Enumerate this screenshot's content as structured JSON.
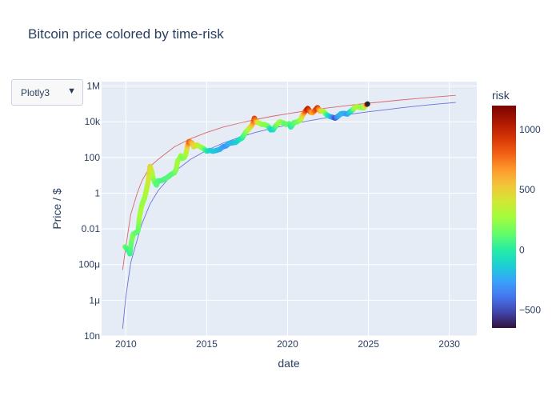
{
  "title": "Bitcoin price colored by time-risk",
  "dropdown": {
    "selected": "Plotly3",
    "caret": "▼"
  },
  "colors": {
    "plot_bg": "#e5ecf6",
    "grid": "#ffffff",
    "upper_band": "#d9666b",
    "lower_band": "#6a73d9",
    "marker_outline": "#333333"
  },
  "chart_data": {
    "type": "scatter",
    "title": "Bitcoin price colored by time-risk",
    "xlabel": "date",
    "ylabel": "Price / $",
    "x_scale": "date",
    "y_scale": "log",
    "xlim": [
      2008.5,
      2031.7
    ],
    "ylim_log10": [
      -8,
      6.25
    ],
    "x_ticks": [
      {
        "value": 2010,
        "label": "2010"
      },
      {
        "value": 2015,
        "label": "2015"
      },
      {
        "value": 2020,
        "label": "2020"
      },
      {
        "value": 2025,
        "label": "2025"
      },
      {
        "value": 2030,
        "label": "2030"
      }
    ],
    "y_ticks": [
      {
        "log10": 6,
        "label": "1M"
      },
      {
        "log10": 4,
        "label": "10k"
      },
      {
        "log10": 2,
        "label": "100"
      },
      {
        "log10": 0,
        "label": "1"
      },
      {
        "log10": -2,
        "label": "0.01"
      },
      {
        "log10": -4,
        "label": "100μ"
      },
      {
        "log10": -6,
        "label": "1μ"
      },
      {
        "log10": -8,
        "label": "10n"
      }
    ],
    "grid": true,
    "colorbar": {
      "title": "risk",
      "range": [
        -650,
        1200
      ],
      "ticks": [
        {
          "value": 1000,
          "label": "1000"
        },
        {
          "value": 500,
          "label": "500"
        },
        {
          "value": 0,
          "label": "0"
        },
        {
          "value": -500,
          "label": "−500"
        }
      ],
      "colorscale": [
        [
          0.0,
          "#30123b"
        ],
        [
          0.07,
          "#4145ab"
        ],
        [
          0.14,
          "#4675ed"
        ],
        [
          0.21,
          "#39a2fc"
        ],
        [
          0.28,
          "#1bcfd4"
        ],
        [
          0.35,
          "#24eca6"
        ],
        [
          0.42,
          "#61fc6c"
        ],
        [
          0.5,
          "#a4fc3b"
        ],
        [
          0.57,
          "#d1e834"
        ],
        [
          0.64,
          "#f3c63a"
        ],
        [
          0.71,
          "#fe9b2d"
        ],
        [
          0.78,
          "#f36315"
        ],
        [
          0.85,
          "#d93806"
        ],
        [
          0.92,
          "#b11901"
        ],
        [
          1.0,
          "#7a0402"
        ]
      ]
    },
    "bands": [
      {
        "name": "upper",
        "points": [
          [
            2009.8,
            -4.3
          ],
          [
            2010.0,
            -3.0
          ],
          [
            2010.3,
            -1.2
          ],
          [
            2010.7,
            0.0
          ],
          [
            2011.0,
            0.7
          ],
          [
            2011.5,
            1.5
          ],
          [
            2012.0,
            1.9
          ],
          [
            2013.0,
            2.6
          ],
          [
            2014.0,
            3.05
          ],
          [
            2015.0,
            3.4
          ],
          [
            2016.0,
            3.7
          ],
          [
            2017.0,
            3.92
          ],
          [
            2018.0,
            4.12
          ],
          [
            2019.0,
            4.3
          ],
          [
            2020.0,
            4.45
          ],
          [
            2021.0,
            4.59
          ],
          [
            2022.0,
            4.72
          ],
          [
            2023.0,
            4.83
          ],
          [
            2024.0,
            4.94
          ],
          [
            2025.0,
            5.04
          ],
          [
            2026.0,
            5.13
          ],
          [
            2027.0,
            5.22
          ],
          [
            2028.0,
            5.3
          ],
          [
            2029.0,
            5.38
          ],
          [
            2030.4,
            5.48
          ]
        ]
      },
      {
        "name": "lower",
        "points": [
          [
            2009.8,
            -7.6
          ],
          [
            2010.0,
            -5.8
          ],
          [
            2010.3,
            -3.9
          ],
          [
            2010.7,
            -2.6
          ],
          [
            2011.0,
            -1.7
          ],
          [
            2011.5,
            -0.6
          ],
          [
            2012.0,
            0.15
          ],
          [
            2013.0,
            1.2
          ],
          [
            2014.0,
            1.9
          ],
          [
            2015.0,
            2.4
          ],
          [
            2016.0,
            2.8
          ],
          [
            2017.0,
            3.12
          ],
          [
            2018.0,
            3.4
          ],
          [
            2019.0,
            3.62
          ],
          [
            2020.0,
            3.82
          ],
          [
            2021.0,
            4.0
          ],
          [
            2022.0,
            4.16
          ],
          [
            2023.0,
            4.31
          ],
          [
            2024.0,
            4.44
          ],
          [
            2025.0,
            4.56
          ],
          [
            2026.0,
            4.67
          ],
          [
            2027.0,
            4.78
          ],
          [
            2028.0,
            4.88
          ],
          [
            2029.0,
            4.97
          ],
          [
            2030.4,
            5.08
          ]
        ]
      }
    ],
    "series": [
      {
        "name": "price",
        "points": [
          [
            2009.95,
            -3.0,
            150
          ],
          [
            2010.05,
            -3.1,
            100
          ],
          [
            2010.15,
            -3.2,
            60
          ],
          [
            2010.25,
            -3.4,
            40
          ],
          [
            2010.35,
            -2.7,
            150
          ],
          [
            2010.45,
            -2.3,
            200
          ],
          [
            2010.55,
            -2.25,
            150
          ],
          [
            2010.65,
            -2.2,
            120
          ],
          [
            2010.75,
            -2.1,
            120
          ],
          [
            2010.85,
            -1.3,
            280
          ],
          [
            2010.95,
            -0.8,
            280
          ],
          [
            2011.05,
            -0.5,
            250
          ],
          [
            2011.15,
            -0.3,
            250
          ],
          [
            2011.25,
            0.1,
            300
          ],
          [
            2011.35,
            0.5,
            350
          ],
          [
            2011.45,
            1.2,
            450
          ],
          [
            2011.5,
            1.5,
            500
          ],
          [
            2011.6,
            1.2,
            380
          ],
          [
            2011.7,
            0.8,
            260
          ],
          [
            2011.8,
            0.6,
            160
          ],
          [
            2011.9,
            0.45,
            100
          ],
          [
            2012.0,
            0.7,
            100
          ],
          [
            2012.2,
            0.7,
            80
          ],
          [
            2012.4,
            0.8,
            80
          ],
          [
            2012.6,
            0.9,
            100
          ],
          [
            2012.8,
            1.05,
            100
          ],
          [
            2013.0,
            1.15,
            120
          ],
          [
            2013.1,
            1.3,
            200
          ],
          [
            2013.2,
            1.8,
            300
          ],
          [
            2013.3,
            1.9,
            250
          ],
          [
            2013.4,
            2.1,
            250
          ],
          [
            2013.5,
            1.95,
            200
          ],
          [
            2013.6,
            2.0,
            200
          ],
          [
            2013.7,
            2.15,
            250
          ],
          [
            2013.8,
            2.6,
            450
          ],
          [
            2013.9,
            2.9,
            800
          ],
          [
            2014.0,
            2.85,
            750
          ],
          [
            2014.1,
            2.8,
            600
          ],
          [
            2014.2,
            2.6,
            450
          ],
          [
            2014.4,
            2.7,
            450
          ],
          [
            2014.6,
            2.6,
            300
          ],
          [
            2014.8,
            2.5,
            200
          ],
          [
            2015.0,
            2.35,
            0
          ],
          [
            2015.2,
            2.4,
            -100
          ],
          [
            2015.4,
            2.35,
            -150
          ],
          [
            2015.6,
            2.4,
            -150
          ],
          [
            2015.8,
            2.45,
            -200
          ],
          [
            2016.0,
            2.6,
            -250
          ],
          [
            2016.2,
            2.65,
            -300
          ],
          [
            2016.4,
            2.8,
            -200
          ],
          [
            2016.6,
            2.82,
            -200
          ],
          [
            2016.8,
            2.85,
            -150
          ],
          [
            2017.0,
            3.0,
            -100
          ],
          [
            2017.2,
            3.1,
            0
          ],
          [
            2017.4,
            3.4,
            150
          ],
          [
            2017.6,
            3.6,
            300
          ],
          [
            2017.8,
            3.8,
            500
          ],
          [
            2017.95,
            4.2,
            900
          ],
          [
            2018.05,
            4.0,
            700
          ],
          [
            2018.2,
            3.95,
            400
          ],
          [
            2018.4,
            3.85,
            250
          ],
          [
            2018.6,
            3.85,
            200
          ],
          [
            2018.8,
            3.75,
            200
          ],
          [
            2018.95,
            3.55,
            -100
          ],
          [
            2019.1,
            3.55,
            -100
          ],
          [
            2019.3,
            3.8,
            100
          ],
          [
            2019.5,
            4.0,
            300
          ],
          [
            2019.7,
            3.95,
            200
          ],
          [
            2019.9,
            3.85,
            100
          ],
          [
            2020.1,
            3.9,
            150
          ],
          [
            2020.2,
            3.7,
            0
          ],
          [
            2020.4,
            3.95,
            100
          ],
          [
            2020.6,
            4.0,
            150
          ],
          [
            2020.8,
            4.1,
            250
          ],
          [
            2020.95,
            4.4,
            500
          ],
          [
            2021.1,
            4.6,
            800
          ],
          [
            2021.25,
            4.75,
            1050
          ],
          [
            2021.4,
            4.55,
            800
          ],
          [
            2021.55,
            4.5,
            600
          ],
          [
            2021.7,
            4.65,
            800
          ],
          [
            2021.85,
            4.8,
            950
          ],
          [
            2022.0,
            4.6,
            600
          ],
          [
            2022.2,
            4.6,
            400
          ],
          [
            2022.4,
            4.4,
            100
          ],
          [
            2022.6,
            4.3,
            -100
          ],
          [
            2022.8,
            4.25,
            -300
          ],
          [
            2022.95,
            4.2,
            -500
          ],
          [
            2023.1,
            4.3,
            -300
          ],
          [
            2023.3,
            4.45,
            -200
          ],
          [
            2023.5,
            4.47,
            -200
          ],
          [
            2023.7,
            4.43,
            -300
          ],
          [
            2023.85,
            4.55,
            -150
          ],
          [
            2024.0,
            4.65,
            0
          ],
          [
            2024.15,
            4.8,
            250
          ],
          [
            2024.3,
            4.85,
            350
          ],
          [
            2024.5,
            4.8,
            250
          ],
          [
            2024.7,
            4.78,
            200
          ],
          [
            2024.85,
            4.95,
            500
          ],
          [
            2024.95,
            5.0,
            1200
          ]
        ]
      }
    ]
  }
}
